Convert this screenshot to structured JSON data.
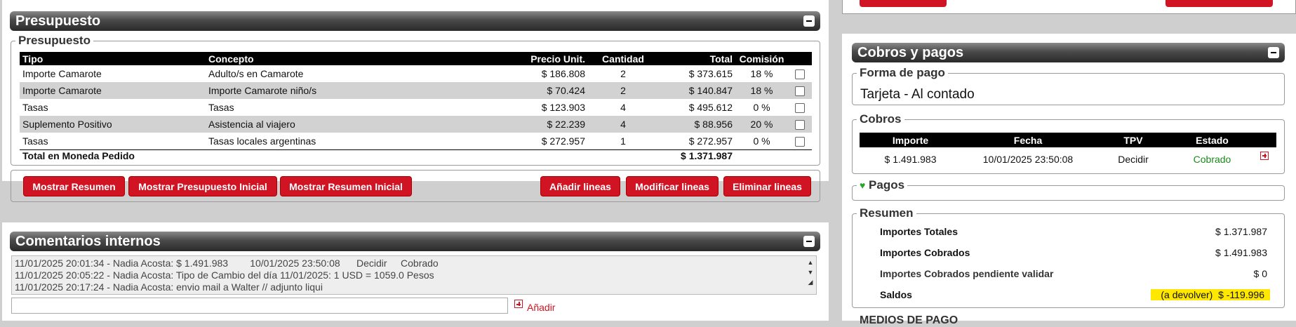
{
  "presupuesto": {
    "bar_title": "Presupuesto",
    "legend": "Presupuesto",
    "columns": [
      "Tipo",
      "Concepto",
      "Precio Unit.",
      "Cantidad",
      "Total",
      "Comisión"
    ],
    "rows": [
      {
        "tipo": "Importe Camarote",
        "concepto": "Adulto/s en Camarote",
        "precio": "$ 186.808",
        "cantidad": "2",
        "total": "$ 373.615",
        "comision": "18 %"
      },
      {
        "tipo": "Importe Camarote",
        "concepto": "Importe Camarote niño/s",
        "precio": "$ 70.424",
        "cantidad": "2",
        "total": "$ 140.847",
        "comision": "18 %"
      },
      {
        "tipo": "Tasas",
        "concepto": "Tasas",
        "precio": "$ 123.903",
        "cantidad": "4",
        "total": "$ 495.612",
        "comision": "0 %"
      },
      {
        "tipo": "Suplemento Positivo",
        "concepto": "Asistencia al viajero",
        "precio": "$ 22.239",
        "cantidad": "4",
        "total": "$ 88.956",
        "comision": "20 %"
      },
      {
        "tipo": "Tasas",
        "concepto": "Tasas locales argentinas",
        "precio": "$ 272.957",
        "cantidad": "1",
        "total": "$ 272.957",
        "comision": "0 %"
      }
    ],
    "total_label": "Total en Moneda Pedido",
    "total_value": "$ 1.371.987",
    "buttons": {
      "mostrar_resumen": "Mostrar Resumen",
      "mostrar_presupuesto_inicial": "Mostrar Presupuesto Inicial",
      "mostrar_resumen_inicial": "Mostrar Resumen Inicial",
      "anadir_lineas": "Añadir lineas",
      "modificar_lineas": "Modificar lineas",
      "eliminar_lineas": "Eliminar lineas"
    }
  },
  "comentarios": {
    "bar_title": "Comentarios internos",
    "lines": [
      "11/01/2025 20:01:34 - Nadia Acosta: $ 1.491.983        10/01/2025 23:50:08      Decidir     Cobrado",
      "11/01/2025 20:05:22 - Nadia Acosta: Tipo de Cambio del día 11/01/2025: 1 USD = 1059.0 Pesos",
      "11/01/2025 20:17:24 - Nadia Acosta: envio mail a Walter // adjunto liqui"
    ],
    "add_label": "Añadir"
  },
  "cobros_pagos": {
    "bar_title": "Cobros y pagos",
    "forma_pago_legend": "Forma de pago",
    "forma_pago_value": "Tarjeta - Al contado",
    "cobros_legend": "Cobros",
    "cobros_columns": [
      "Importe",
      "Fecha",
      "TPV",
      "Estado"
    ],
    "cobros_rows": [
      {
        "importe": "$ 1.491.983",
        "fecha": "10/01/2025 23:50:08",
        "tpv": "Decidir",
        "estado": "Cobrado"
      }
    ],
    "pagos_legend": "Pagos",
    "resumen_legend": "Resumen",
    "resumen_rows": [
      {
        "label": "Importes Totales",
        "value": "$ 1.371.987"
      },
      {
        "label": "Importes Cobrados",
        "value": "$ 1.491.983"
      },
      {
        "label": "Importes Cobrados pendiente validar",
        "value": "$ 0"
      },
      {
        "label": "Saldos",
        "value": "(a devolver)  $ -119.996"
      }
    ],
    "medios_partial": "MEDIOS DE PAGO"
  },
  "colors": {
    "accent_red": "#d01424",
    "cobrado_green": "#1a8a1a",
    "highlight": "#ffe800"
  }
}
